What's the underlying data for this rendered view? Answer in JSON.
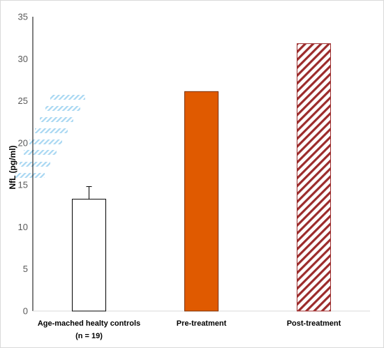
{
  "chart_data": {
    "type": "bar",
    "title": "",
    "xlabel": "",
    "ylabel": "NfL (pg/ml)",
    "ylim": [
      0,
      35
    ],
    "yticks": [
      0,
      5,
      10,
      15,
      20,
      25,
      30,
      35
    ],
    "grid": false,
    "categories": [
      {
        "line1": "Age-mached healty controls",
        "line2": "(n = 19)"
      },
      {
        "line1": "Pre-treatment",
        "line2": ""
      },
      {
        "line1": "Post-treatment",
        "line2": ""
      }
    ],
    "values": [
      13.3,
      26.1,
      31.8
    ],
    "error_bars": [
      1.5,
      null,
      null
    ],
    "bar_styles": [
      {
        "fill": "#ffffff",
        "stroke": "#000000",
        "pattern": "none"
      },
      {
        "fill": "#e05a00",
        "stroke": "#7a2e00",
        "pattern": "none"
      },
      {
        "fill": "#ffffff",
        "stroke": "#9c2b2b",
        "pattern": "diagonal-stripes",
        "stripe_color": "#9c2b2b"
      }
    ],
    "decoration_color": "#9ed3f0"
  }
}
